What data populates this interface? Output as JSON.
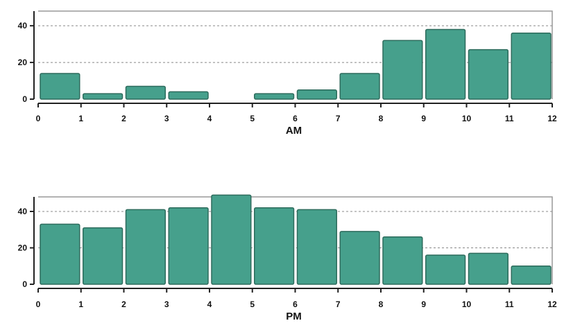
{
  "chart_data": [
    {
      "type": "bar",
      "xlabel": "AM",
      "ylabel": "",
      "title": "",
      "x_bins": [
        0,
        1,
        2,
        3,
        4,
        5,
        6,
        7,
        8,
        9,
        10,
        11
      ],
      "values": [
        14,
        3,
        7,
        4,
        0,
        3,
        5,
        14,
        32,
        38,
        27,
        36
      ],
      "xlim": [
        0,
        12
      ],
      "ylim": [
        0,
        48
      ],
      "x_ticks": [
        "0",
        "1",
        "2",
        "3",
        "4",
        "5",
        "6",
        "7",
        "8",
        "9",
        "10",
        "11",
        "12"
      ],
      "y_ticks": [
        "0",
        "20",
        "40"
      ],
      "y_gridlines": [
        20,
        40
      ],
      "grid": "horizontal-dashed"
    },
    {
      "type": "bar",
      "xlabel": "PM",
      "ylabel": "",
      "title": "",
      "x_bins": [
        0,
        1,
        2,
        3,
        4,
        5,
        6,
        7,
        8,
        9,
        10,
        11
      ],
      "values": [
        33,
        31,
        41,
        42,
        49,
        42,
        41,
        29,
        26,
        16,
        17,
        10
      ],
      "xlim": [
        0,
        12
      ],
      "ylim": [
        0,
        48
      ],
      "x_ticks": [
        "0",
        "1",
        "2",
        "3",
        "4",
        "5",
        "6",
        "7",
        "8",
        "9",
        "10",
        "11",
        "12"
      ],
      "y_ticks": [
        "0",
        "20",
        "40"
      ],
      "y_gridlines": [
        20,
        40
      ],
      "grid": "horizontal-dashed"
    }
  ],
  "colors": {
    "bar_fill": "#46a08c",
    "bar_stroke": "#2d6b5c",
    "axis": "#222222",
    "frame": "#999999",
    "grid": "#888888"
  }
}
